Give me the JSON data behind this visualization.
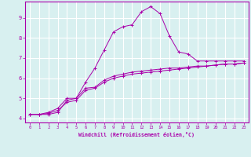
{
  "xlabel": "Windchill (Refroidissement éolien,°C)",
  "bg_color": "#d8f0f0",
  "grid_color": "#ffffff",
  "line_color": "#aa00aa",
  "x_data": [
    0,
    1,
    2,
    3,
    4,
    5,
    6,
    7,
    8,
    9,
    10,
    11,
    12,
    13,
    14,
    15,
    16,
    17,
    18,
    19,
    20,
    21,
    22,
    23
  ],
  "curve1": [
    4.2,
    4.2,
    4.2,
    4.3,
    4.9,
    5.0,
    5.5,
    5.55,
    5.9,
    6.1,
    6.2,
    6.3,
    6.35,
    6.4,
    6.45,
    6.5,
    6.5,
    6.55,
    6.6,
    6.6,
    6.65,
    6.7,
    6.7,
    6.75
  ],
  "curve2": [
    4.2,
    4.2,
    4.25,
    4.4,
    4.8,
    4.9,
    5.4,
    5.5,
    5.8,
    6.0,
    6.1,
    6.2,
    6.25,
    6.3,
    6.35,
    6.4,
    6.45,
    6.5,
    6.55,
    6.6,
    6.65,
    6.7,
    6.7,
    6.75
  ],
  "curve3": [
    4.2,
    4.2,
    4.3,
    4.5,
    5.0,
    5.0,
    5.8,
    6.5,
    7.4,
    8.3,
    8.55,
    8.65,
    9.3,
    9.55,
    9.2,
    8.1,
    7.3,
    7.2,
    6.85,
    6.85,
    6.85,
    6.85,
    6.85,
    6.85
  ],
  "ylim": [
    3.8,
    9.8
  ],
  "xlim": [
    -0.5,
    23.5
  ],
  "yticks": [
    4,
    5,
    6,
    7,
    8,
    9
  ],
  "xticks": [
    0,
    1,
    2,
    3,
    4,
    5,
    6,
    7,
    8,
    9,
    10,
    11,
    12,
    13,
    14,
    15,
    16,
    17,
    18,
    19,
    20,
    21,
    22,
    23
  ]
}
